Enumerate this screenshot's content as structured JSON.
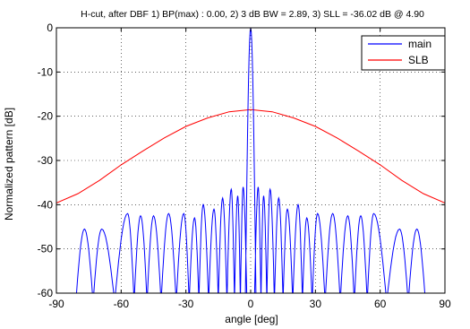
{
  "chart_data": {
    "type": "line",
    "title": "H-cut, after DBF 1) BP(max) : 0.00, 2) 3 dB BW = 2.89, 3) SLL = -36.02 dB @ 4.90",
    "xlabel": "angle [deg]",
    "ylabel": "Normalized pattern [dB]",
    "xlim": [
      -90,
      90
    ],
    "ylim": [
      -60,
      0
    ],
    "xticks": [
      -90,
      -60,
      -30,
      0,
      30,
      60,
      90
    ],
    "yticks": [
      0,
      -10,
      -20,
      -30,
      -40,
      -50,
      -60
    ],
    "grid": true,
    "grid_style": "dotted",
    "legend_position": "top-right",
    "series": [
      {
        "name": "main",
        "color": "#0000ff",
        "peak": [
          0,
          0
        ],
        "sidelobe_peaks": [
          [
            -77,
            -45.5
          ],
          [
            -69,
            -45.5
          ],
          [
            -57,
            -42
          ],
          [
            -51,
            -42.5
          ],
          [
            -45,
            -42.5
          ],
          [
            -38,
            -42
          ],
          [
            -31,
            -42
          ],
          [
            -26,
            -43
          ],
          [
            -22,
            -40
          ],
          [
            -17,
            -41
          ],
          [
            -13,
            -38.5
          ],
          [
            -9,
            -36.5
          ],
          [
            -6,
            -38
          ],
          [
            -3.5,
            -36
          ],
          [
            3.5,
            -36
          ],
          [
            6,
            -38
          ],
          [
            9,
            -36.5
          ],
          [
            13,
            -38.5
          ],
          [
            17,
            -41
          ],
          [
            22,
            -40
          ],
          [
            26,
            -43
          ],
          [
            31,
            -42
          ],
          [
            38,
            -42
          ],
          [
            45,
            -42.5
          ],
          [
            51,
            -42.5
          ],
          [
            57,
            -42
          ],
          [
            69,
            -45.5
          ],
          [
            77,
            -45.5
          ]
        ]
      },
      {
        "name": "SLB",
        "color": "#ff0000",
        "x": [
          -90,
          -80,
          -70,
          -60,
          -50,
          -40,
          -30,
          -20,
          -10,
          0,
          10,
          20,
          30,
          40,
          50,
          60,
          70,
          80,
          90
        ],
        "y": [
          -39.6,
          -37.5,
          -34.5,
          -31.0,
          -27.9,
          -24.9,
          -22.3,
          -20.4,
          -19.0,
          -18.5,
          -19.0,
          -20.4,
          -22.3,
          -24.9,
          -27.9,
          -31.0,
          -34.5,
          -37.5,
          -39.6
        ]
      }
    ]
  }
}
